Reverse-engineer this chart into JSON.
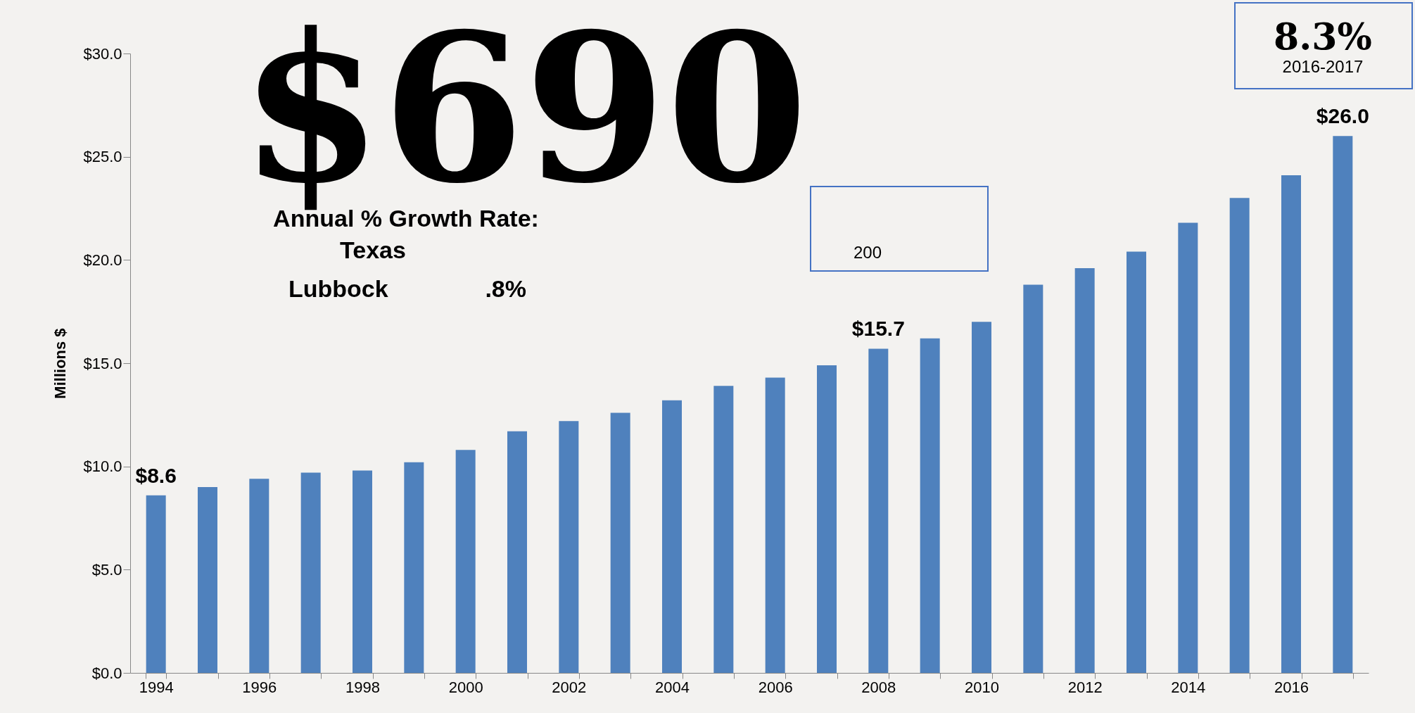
{
  "chart_data": {
    "type": "bar",
    "ylabel": "Millions $",
    "categories": [
      "1994",
      null,
      "1996",
      null,
      "1998",
      null,
      "2000",
      null,
      "2002",
      null,
      "2004",
      null,
      "2006",
      null,
      "2008",
      null,
      "2010",
      null,
      "2012",
      null,
      "2014",
      null,
      "2016",
      null
    ],
    "values": [
      8.6,
      9.0,
      9.4,
      9.7,
      9.8,
      10.2,
      10.8,
      11.7,
      12.2,
      12.6,
      13.2,
      13.9,
      14.3,
      14.9,
      15.7,
      16.2,
      17.0,
      18.8,
      19.6,
      20.4,
      21.8,
      23.0,
      24.1,
      26.0
    ],
    "color": "#4f81bd",
    "value_labels": [
      "$8.6",
      null,
      null,
      null,
      null,
      null,
      null,
      null,
      null,
      null,
      null,
      null,
      null,
      null,
      "$15.7",
      null,
      null,
      null,
      null,
      null,
      null,
      null,
      null,
      "$26.0"
    ],
    "ylim": [
      0,
      30
    ],
    "yticks": [
      {
        "value": 0,
        "label": "$0.0"
      },
      {
        "value": 5,
        "label": "$5.0"
      },
      {
        "value": 10,
        "label": "$10.0"
      },
      {
        "value": 15,
        "label": "$15.0"
      },
      {
        "value": 20,
        "label": "$20.0"
      },
      {
        "value": 25,
        "label": "$25.0"
      },
      {
        "value": 30,
        "label": "$30.0"
      }
    ],
    "grid": false,
    "annotations": [
      "Annual % Growth Rate:",
      "Texas",
      "Lubbock",
      ".8%",
      "8.3%",
      "2016-2017",
      "200",
      "$690"
    ]
  }
}
